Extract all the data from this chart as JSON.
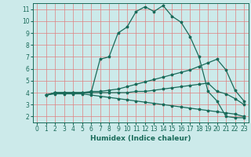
{
  "title": "",
  "xlabel": "Humidex (Indice chaleur)",
  "background_color": "#cceaea",
  "grid_color": "#e08080",
  "line_color": "#1a6b5a",
  "xlim": [
    -0.5,
    23.5
  ],
  "ylim": [
    1.5,
    11.5
  ],
  "xticks": [
    0,
    1,
    2,
    3,
    4,
    5,
    6,
    7,
    8,
    9,
    10,
    11,
    12,
    13,
    14,
    15,
    16,
    17,
    18,
    19,
    20,
    21,
    22,
    23
  ],
  "yticks": [
    2,
    3,
    4,
    5,
    6,
    7,
    8,
    9,
    10,
    11
  ],
  "line1_x": [
    1,
    2,
    3,
    4,
    5,
    6,
    7,
    8,
    9,
    10,
    11,
    12,
    13,
    14,
    15,
    16,
    17,
    18,
    19,
    20,
    21,
    22,
    23
  ],
  "line1_y": [
    3.8,
    4.0,
    4.0,
    4.0,
    4.0,
    4.0,
    6.8,
    7.0,
    9.0,
    9.5,
    10.8,
    11.2,
    10.8,
    11.3,
    10.4,
    9.9,
    8.7,
    7.0,
    4.1,
    3.3,
    2.0,
    1.9,
    1.9
  ],
  "line2_x": [
    1,
    2,
    3,
    4,
    5,
    6,
    7,
    8,
    9,
    10,
    11,
    12,
    13,
    14,
    15,
    16,
    17,
    18,
    19,
    20,
    21,
    22,
    23
  ],
  "line2_y": [
    3.8,
    4.0,
    4.0,
    4.0,
    4.0,
    4.1,
    4.1,
    4.2,
    4.3,
    4.5,
    4.7,
    4.9,
    5.1,
    5.3,
    5.5,
    5.7,
    5.9,
    6.2,
    6.5,
    6.8,
    5.9,
    4.2,
    3.3
  ],
  "line3_x": [
    1,
    2,
    3,
    4,
    5,
    6,
    7,
    8,
    9,
    10,
    11,
    12,
    13,
    14,
    15,
    16,
    17,
    18,
    19,
    20,
    21,
    22,
    23
  ],
  "line3_y": [
    3.8,
    4.0,
    4.0,
    4.0,
    4.0,
    4.0,
    4.0,
    4.0,
    4.0,
    4.0,
    4.1,
    4.1,
    4.2,
    4.3,
    4.4,
    4.5,
    4.6,
    4.7,
    4.8,
    4.1,
    3.9,
    3.5,
    3.0
  ],
  "line4_x": [
    1,
    2,
    3,
    4,
    5,
    6,
    7,
    8,
    9,
    10,
    11,
    12,
    13,
    14,
    15,
    16,
    17,
    18,
    19,
    20,
    21,
    22,
    23
  ],
  "line4_y": [
    3.8,
    3.9,
    3.9,
    3.9,
    3.9,
    3.8,
    3.7,
    3.6,
    3.5,
    3.4,
    3.3,
    3.2,
    3.1,
    3.0,
    2.9,
    2.8,
    2.7,
    2.6,
    2.5,
    2.4,
    2.3,
    2.2,
    2.0
  ],
  "tick_fontsize": 5.5,
  "xlabel_fontsize": 6.5
}
